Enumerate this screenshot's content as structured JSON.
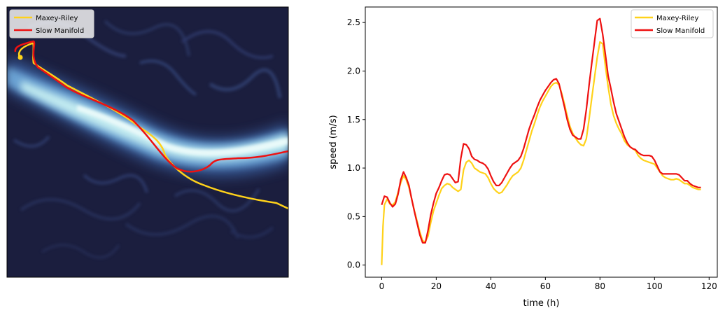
{
  "chart_data": [
    {
      "type": "map",
      "legend": {
        "placement": "upper-left",
        "entries": [
          {
            "label": "Maxey-Riley",
            "color": "#FFD21A"
          },
          {
            "label": "Slow Manifold",
            "color": "#EE1111"
          }
        ]
      },
      "axes": "off",
      "colormap": "dark-navy-to-cyan-white (speed field)",
      "colors": {
        "background_dark": "#1b1e3e",
        "jet_mid": "#4f86c9",
        "jet_core": "#e6fbfb"
      }
    },
    {
      "type": "line",
      "xlabel": "time (h)",
      "ylabel": "speed (m/s)",
      "xlim": [
        -6,
        123
      ],
      "ylim": [
        -0.125,
        2.66
      ],
      "xticks": [
        0,
        20,
        40,
        60,
        80,
        100,
        120
      ],
      "yticks": [
        0.0,
        0.5,
        1.0,
        1.5,
        2.0,
        2.5
      ],
      "xtick_labels": [
        "0",
        "20",
        "40",
        "60",
        "80",
        "100",
        "120"
      ],
      "ytick_labels": [
        "0.0",
        "0.5",
        "1.0",
        "1.5",
        "2.0",
        "2.5"
      ],
      "grid": false,
      "legend": {
        "placement": "top-right"
      },
      "series": [
        {
          "name": "Maxey-Riley",
          "color": "#FFD21A",
          "points": [
            [
              0,
              0.0
            ],
            [
              0.5,
              0.4
            ],
            [
              1,
              0.62
            ],
            [
              2,
              0.68
            ],
            [
              3,
              0.63
            ],
            [
              4,
              0.62
            ],
            [
              5,
              0.65
            ],
            [
              6,
              0.75
            ],
            [
              7,
              0.85
            ],
            [
              8,
              0.92
            ],
            [
              9,
              0.88
            ],
            [
              10,
              0.8
            ],
            [
              11,
              0.68
            ],
            [
              12,
              0.56
            ],
            [
              13,
              0.45
            ],
            [
              14,
              0.34
            ],
            [
              15,
              0.25
            ],
            [
              16,
              0.24
            ],
            [
              17,
              0.3
            ],
            [
              18,
              0.44
            ],
            [
              19,
              0.56
            ],
            [
              20,
              0.64
            ],
            [
              21,
              0.72
            ],
            [
              22,
              0.79
            ],
            [
              23,
              0.82
            ],
            [
              24,
              0.84
            ],
            [
              25,
              0.83
            ],
            [
              26,
              0.8
            ],
            [
              27,
              0.78
            ],
            [
              28,
              0.76
            ],
            [
              29,
              0.78
            ],
            [
              30,
              0.98
            ],
            [
              31,
              1.06
            ],
            [
              32,
              1.08
            ],
            [
              33,
              1.05
            ],
            [
              34,
              1.0
            ],
            [
              35,
              0.98
            ],
            [
              36,
              0.96
            ],
            [
              37,
              0.95
            ],
            [
              38,
              0.94
            ],
            [
              39,
              0.9
            ],
            [
              40,
              0.84
            ],
            [
              41,
              0.79
            ],
            [
              42,
              0.76
            ],
            [
              43,
              0.74
            ],
            [
              44,
              0.75
            ],
            [
              45,
              0.79
            ],
            [
              46,
              0.83
            ],
            [
              47,
              0.88
            ],
            [
              48,
              0.92
            ],
            [
              49,
              0.94
            ],
            [
              50,
              0.96
            ],
            [
              51,
              1.0
            ],
            [
              52,
              1.08
            ],
            [
              53,
              1.18
            ],
            [
              54,
              1.28
            ],
            [
              55,
              1.38
            ],
            [
              56,
              1.46
            ],
            [
              57,
              1.55
            ],
            [
              58,
              1.63
            ],
            [
              59,
              1.69
            ],
            [
              60,
              1.74
            ],
            [
              61,
              1.79
            ],
            [
              62,
              1.84
            ],
            [
              63,
              1.87
            ],
            [
              64,
              1.88
            ],
            [
              65,
              1.86
            ],
            [
              66,
              1.77
            ],
            [
              67,
              1.66
            ],
            [
              68,
              1.54
            ],
            [
              69,
              1.43
            ],
            [
              70,
              1.36
            ],
            [
              71,
              1.31
            ],
            [
              72,
              1.27
            ],
            [
              73,
              1.24
            ],
            [
              74,
              1.23
            ],
            [
              75,
              1.3
            ],
            [
              76,
              1.5
            ],
            [
              77,
              1.72
            ],
            [
              78,
              1.93
            ],
            [
              79,
              2.14
            ],
            [
              80,
              2.3
            ],
            [
              81,
              2.28
            ],
            [
              82,
              2.05
            ],
            [
              83,
              1.84
            ],
            [
              84,
              1.66
            ],
            [
              85,
              1.54
            ],
            [
              86,
              1.46
            ],
            [
              87,
              1.4
            ],
            [
              88,
              1.35
            ],
            [
              89,
              1.28
            ],
            [
              90,
              1.24
            ],
            [
              91,
              1.22
            ],
            [
              92,
              1.2
            ],
            [
              93,
              1.18
            ],
            [
              94,
              1.13
            ],
            [
              95,
              1.1
            ],
            [
              96,
              1.08
            ],
            [
              97,
              1.07
            ],
            [
              98,
              1.06
            ],
            [
              99,
              1.05
            ],
            [
              100,
              1.04
            ],
            [
              101,
              1.0
            ],
            [
              102,
              0.96
            ],
            [
              103,
              0.92
            ],
            [
              104,
              0.9
            ],
            [
              105,
              0.89
            ],
            [
              106,
              0.88
            ],
            [
              107,
              0.88
            ],
            [
              108,
              0.89
            ],
            [
              109,
              0.88
            ],
            [
              110,
              0.86
            ],
            [
              111,
              0.84
            ],
            [
              112,
              0.84
            ],
            [
              113,
              0.82
            ],
            [
              114,
              0.8
            ],
            [
              115,
              0.79
            ],
            [
              116,
              0.78
            ],
            [
              117,
              0.78
            ]
          ]
        },
        {
          "name": "Slow Manifold",
          "color": "#EE1111",
          "points": [
            [
              0,
              0.62
            ],
            [
              1,
              0.71
            ],
            [
              2,
              0.7
            ],
            [
              3,
              0.64
            ],
            [
              4,
              0.6
            ],
            [
              5,
              0.63
            ],
            [
              6,
              0.73
            ],
            [
              7,
              0.88
            ],
            [
              8,
              0.96
            ],
            [
              9,
              0.9
            ],
            [
              10,
              0.82
            ],
            [
              11,
              0.68
            ],
            [
              12,
              0.55
            ],
            [
              13,
              0.43
            ],
            [
              14,
              0.31
            ],
            [
              15,
              0.23
            ],
            [
              16,
              0.23
            ],
            [
              17,
              0.36
            ],
            [
              18,
              0.52
            ],
            [
              19,
              0.64
            ],
            [
              20,
              0.74
            ],
            [
              21,
              0.8
            ],
            [
              22,
              0.87
            ],
            [
              23,
              0.93
            ],
            [
              24,
              0.94
            ],
            [
              25,
              0.93
            ],
            [
              26,
              0.89
            ],
            [
              27,
              0.85
            ],
            [
              28,
              0.86
            ],
            [
              29,
              1.1
            ],
            [
              30,
              1.25
            ],
            [
              31,
              1.24
            ],
            [
              32,
              1.2
            ],
            [
              33,
              1.12
            ],
            [
              34,
              1.09
            ],
            [
              35,
              1.08
            ],
            [
              36,
              1.06
            ],
            [
              37,
              1.05
            ],
            [
              38,
              1.03
            ],
            [
              39,
              0.99
            ],
            [
              40,
              0.92
            ],
            [
              41,
              0.86
            ],
            [
              42,
              0.82
            ],
            [
              43,
              0.82
            ],
            [
              44,
              0.85
            ],
            [
              45,
              0.9
            ],
            [
              46,
              0.95
            ],
            [
              47,
              1.0
            ],
            [
              48,
              1.04
            ],
            [
              49,
              1.06
            ],
            [
              50,
              1.08
            ],
            [
              51,
              1.12
            ],
            [
              52,
              1.2
            ],
            [
              53,
              1.3
            ],
            [
              54,
              1.4
            ],
            [
              55,
              1.48
            ],
            [
              56,
              1.55
            ],
            [
              57,
              1.63
            ],
            [
              58,
              1.7
            ],
            [
              59,
              1.75
            ],
            [
              60,
              1.8
            ],
            [
              61,
              1.84
            ],
            [
              62,
              1.88
            ],
            [
              63,
              1.91
            ],
            [
              64,
              1.92
            ],
            [
              65,
              1.87
            ],
            [
              66,
              1.75
            ],
            [
              67,
              1.63
            ],
            [
              68,
              1.5
            ],
            [
              69,
              1.4
            ],
            [
              70,
              1.34
            ],
            [
              71,
              1.32
            ],
            [
              72,
              1.3
            ],
            [
              73,
              1.3
            ],
            [
              74,
              1.4
            ],
            [
              75,
              1.6
            ],
            [
              76,
              1.85
            ],
            [
              77,
              2.08
            ],
            [
              78,
              2.3
            ],
            [
              79,
              2.52
            ],
            [
              80,
              2.54
            ],
            [
              81,
              2.38
            ],
            [
              82,
              2.17
            ],
            [
              83,
              1.95
            ],
            [
              84,
              1.82
            ],
            [
              85,
              1.68
            ],
            [
              86,
              1.56
            ],
            [
              87,
              1.48
            ],
            [
              88,
              1.4
            ],
            [
              89,
              1.32
            ],
            [
              90,
              1.26
            ],
            [
              91,
              1.22
            ],
            [
              92,
              1.2
            ],
            [
              93,
              1.19
            ],
            [
              94,
              1.16
            ],
            [
              95,
              1.14
            ],
            [
              96,
              1.13
            ],
            [
              97,
              1.13
            ],
            [
              98,
              1.13
            ],
            [
              99,
              1.12
            ],
            [
              100,
              1.08
            ],
            [
              101,
              1.02
            ],
            [
              102,
              0.96
            ],
            [
              103,
              0.94
            ],
            [
              104,
              0.94
            ],
            [
              105,
              0.94
            ],
            [
              106,
              0.94
            ],
            [
              107,
              0.94
            ],
            [
              108,
              0.94
            ],
            [
              109,
              0.93
            ],
            [
              110,
              0.9
            ],
            [
              111,
              0.87
            ],
            [
              112,
              0.87
            ],
            [
              113,
              0.84
            ],
            [
              114,
              0.82
            ],
            [
              115,
              0.81
            ],
            [
              116,
              0.8
            ],
            [
              117,
              0.8
            ]
          ]
        }
      ]
    }
  ]
}
